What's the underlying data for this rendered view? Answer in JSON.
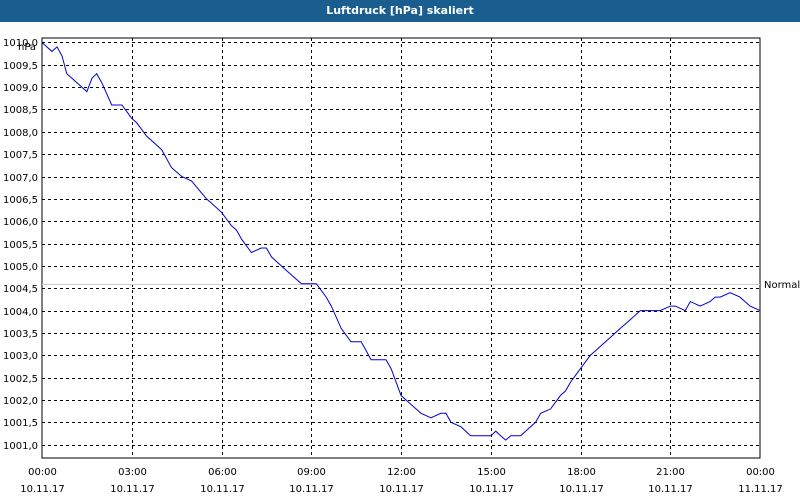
{
  "window": {
    "title": "Luftdruck [hPa] skaliert"
  },
  "chart_data": {
    "type": "line",
    "title": "Luftdruck [hPa] skaliert",
    "ylabel": "hPa",
    "xlabel": "",
    "ylim": [
      1000.7,
      1010.1
    ],
    "xlim": [
      0,
      24
    ],
    "grid": true,
    "grid_style": "dashed",
    "y_ticks": [
      "1001,0",
      "1001,5",
      "1002,0",
      "1002,5",
      "1003,0",
      "1003,5",
      "1004,0",
      "1004,5",
      "1005,0",
      "1005,5",
      "1006,0",
      "1006,5",
      "1007,0",
      "1007,5",
      "1008,0",
      "1008,5",
      "1009,0",
      "1009,5",
      "1010,0"
    ],
    "y_tick_values": [
      1001.0,
      1001.5,
      1002.0,
      1002.5,
      1003.0,
      1003.5,
      1004.0,
      1004.5,
      1005.0,
      1005.5,
      1006.0,
      1006.5,
      1007.0,
      1007.5,
      1008.0,
      1008.5,
      1009.0,
      1009.5,
      1010.0
    ],
    "x_ticks": [
      {
        "time": "00:00",
        "date": "10.11.17"
      },
      {
        "time": "03:00",
        "date": "10.11.17"
      },
      {
        "time": "06:00",
        "date": "10.11.17"
      },
      {
        "time": "09:00",
        "date": "10.11.17"
      },
      {
        "time": "12:00",
        "date": "10.11.17"
      },
      {
        "time": "15:00",
        "date": "10.11.17"
      },
      {
        "time": "18:00",
        "date": "10.11.17"
      },
      {
        "time": "21:00",
        "date": "10.11.17"
      },
      {
        "time": "00:00",
        "date": "11.11.17"
      }
    ],
    "x_tick_values": [
      0,
      3,
      6,
      9,
      12,
      15,
      18,
      21,
      24
    ],
    "reference_line": {
      "label": "Normal",
      "value": 1004.6,
      "color": "#cccccc"
    },
    "series": [
      {
        "color": "#0000cc",
        "x": [
          0,
          0.33,
          0.5,
          0.67,
          0.83,
          1,
          1.5,
          1.67,
          1.83,
          2,
          2.33,
          2.5,
          2.67,
          3,
          3.17,
          3.5,
          3.67,
          4,
          4.33,
          4.5,
          4.67,
          5,
          5.5,
          5.67,
          6,
          6.33,
          6.5,
          6.67,
          7,
          7.33,
          7.5,
          7.67,
          8,
          8.33,
          8.5,
          8.67,
          9,
          9.17,
          9.5,
          9.67,
          10,
          10.33,
          10.5,
          10.67,
          11,
          11.33,
          11.5,
          11.67,
          12,
          12.33,
          12.5,
          12.67,
          13,
          13.33,
          13.5,
          13.67,
          14,
          14.33,
          14.5,
          14.67,
          15,
          15.17,
          15.33,
          15.5,
          15.67,
          16,
          16.33,
          16.5,
          16.67,
          17,
          17.33,
          17.5,
          17.67,
          18,
          18.33,
          18.5,
          18.67,
          19,
          19.33,
          19.5,
          19.67,
          20,
          20.33,
          20.5,
          20.67,
          21,
          21.17,
          21.5,
          21.67,
          22,
          22.33,
          22.5,
          22.67,
          23,
          23.33,
          23.5,
          23.67,
          24
        ],
        "y": [
          1010.0,
          1009.8,
          1009.9,
          1009.7,
          1009.3,
          1009.2,
          1008.9,
          1009.2,
          1009.3,
          1009.1,
          1008.6,
          1008.6,
          1008.6,
          1008.3,
          1008.2,
          1007.9,
          1007.8,
          1007.6,
          1007.2,
          1007.1,
          1007.0,
          1006.9,
          1006.5,
          1006.4,
          1006.2,
          1005.9,
          1005.8,
          1005.6,
          1005.3,
          1005.4,
          1005.4,
          1005.2,
          1005.0,
          1004.8,
          1004.7,
          1004.6,
          1004.6,
          1004.6,
          1004.3,
          1004.1,
          1003.6,
          1003.3,
          1003.3,
          1003.3,
          1002.9,
          1002.9,
          1002.9,
          1002.7,
          1002.1,
          1001.9,
          1001.8,
          1001.7,
          1001.6,
          1001.7,
          1001.7,
          1001.5,
          1001.4,
          1001.2,
          1001.2,
          1001.2,
          1001.2,
          1001.3,
          1001.2,
          1001.1,
          1001.2,
          1001.2,
          1001.4,
          1001.5,
          1001.7,
          1001.8,
          1002.1,
          1002.2,
          1002.4,
          1002.7,
          1003.0,
          1003.1,
          1003.2,
          1003.4,
          1003.6,
          1003.7,
          1003.8,
          1004.0,
          1004.0,
          1004.0,
          1004.0,
          1004.1,
          1004.1,
          1004.0,
          1004.2,
          1004.1,
          1004.2,
          1004.3,
          1004.3,
          1004.4,
          1004.3,
          1004.2,
          1004.1,
          1004.0
        ]
      }
    ]
  }
}
